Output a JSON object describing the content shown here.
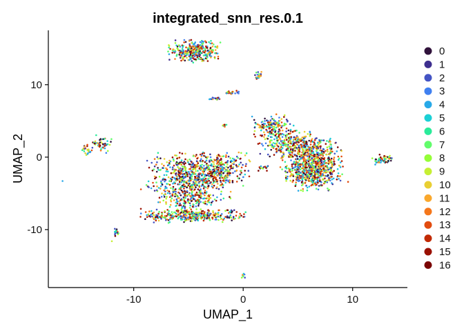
{
  "chart_data": {
    "type": "scatter",
    "title": "integrated_snn_res.0.1",
    "xlabel": "UMAP_1",
    "ylabel": "UMAP_2",
    "xlim": [
      -17.8,
      15.0
    ],
    "ylim": [
      -18.0,
      17.5
    ],
    "x_ticks": [
      -10,
      0,
      10
    ],
    "y_ticks": [
      -10,
      0,
      10
    ],
    "grid": false,
    "legend_position": "right",
    "legend": [
      {
        "name": "0",
        "color": "#30123b"
      },
      {
        "name": "1",
        "color": "#3e2f8f"
      },
      {
        "name": "2",
        "color": "#4454c4"
      },
      {
        "name": "3",
        "color": "#4080f0"
      },
      {
        "name": "4",
        "color": "#28a9e8"
      },
      {
        "name": "5",
        "color": "#1bd0d5"
      },
      {
        "name": "6",
        "color": "#2aeb9a"
      },
      {
        "name": "7",
        "color": "#62fc6b"
      },
      {
        "name": "8",
        "color": "#95fe38"
      },
      {
        "name": "9",
        "color": "#c6ef34"
      },
      {
        "name": "10",
        "color": "#e9cf33"
      },
      {
        "name": "11",
        "color": "#faa82d"
      },
      {
        "name": "12",
        "color": "#f5771b"
      },
      {
        "name": "13",
        "color": "#e24c0f"
      },
      {
        "name": "14",
        "color": "#c12a04"
      },
      {
        "name": "15",
        "color": "#9a1002"
      },
      {
        "name": "16",
        "color": "#7a0403"
      }
    ],
    "clusters": [
      {
        "cx": -4.5,
        "cy": 14.6,
        "sx": 1.1,
        "sy": 0.75,
        "n": 320
      },
      {
        "cx": -5.0,
        "cy": -3.0,
        "sx": 1.8,
        "sy": 1.7,
        "n": 650
      },
      {
        "cx": -2.0,
        "cy": -1.6,
        "sx": 1.2,
        "sy": 1.1,
        "n": 260
      },
      {
        "cx": -4.5,
        "cy": -8.1,
        "sx": 2.3,
        "sy": 0.45,
        "n": 340
      },
      {
        "cx": -4.8,
        "cy": -6.0,
        "sx": 0.9,
        "sy": 0.9,
        "n": 120
      },
      {
        "cx": 2.7,
        "cy": 4.2,
        "sx": 0.9,
        "sy": 0.8,
        "n": 150
      },
      {
        "cx": 4.2,
        "cy": 2.0,
        "sx": 1.3,
        "sy": 0.9,
        "n": 230
      },
      {
        "cx": 6.2,
        "cy": -0.3,
        "sx": 1.3,
        "sy": 1.5,
        "n": 560
      },
      {
        "cx": 6.5,
        "cy": -2.5,
        "sx": 1.2,
        "sy": 1.0,
        "n": 300
      },
      {
        "cx": 12.7,
        "cy": -0.3,
        "sx": 0.45,
        "sy": 0.35,
        "n": 55
      },
      {
        "cx": 1.4,
        "cy": 11.3,
        "sx": 0.15,
        "sy": 0.25,
        "n": 18
      },
      {
        "cx": -0.9,
        "cy": 8.9,
        "sx": 0.35,
        "sy": 0.15,
        "n": 22
      },
      {
        "cx": -2.6,
        "cy": 8.1,
        "sx": 0.25,
        "sy": 0.1,
        "n": 14
      },
      {
        "cx": -1.7,
        "cy": 4.3,
        "sx": 0.12,
        "sy": 0.1,
        "n": 8
      },
      {
        "cx": -14.2,
        "cy": 0.9,
        "sx": 0.25,
        "sy": 0.5,
        "n": 28
      },
      {
        "cx": -13.0,
        "cy": 1.9,
        "sx": 0.45,
        "sy": 0.6,
        "n": 45
      },
      {
        "cx": -11.6,
        "cy": -10.5,
        "sx": 0.1,
        "sy": 0.35,
        "n": 14
      },
      {
        "cx": 0.0,
        "cy": -16.4,
        "sx": 0.1,
        "sy": 0.2,
        "n": 7
      },
      {
        "cx": 1.8,
        "cy": -1.5,
        "sx": 0.3,
        "sy": 0.2,
        "n": 14
      }
    ],
    "singletons": [
      {
        "x": -16.5,
        "y": -3.3
      },
      {
        "x": -12.0,
        "y": -11.6
      },
      {
        "x": 2.2,
        "y": -1.3
      }
    ]
  }
}
